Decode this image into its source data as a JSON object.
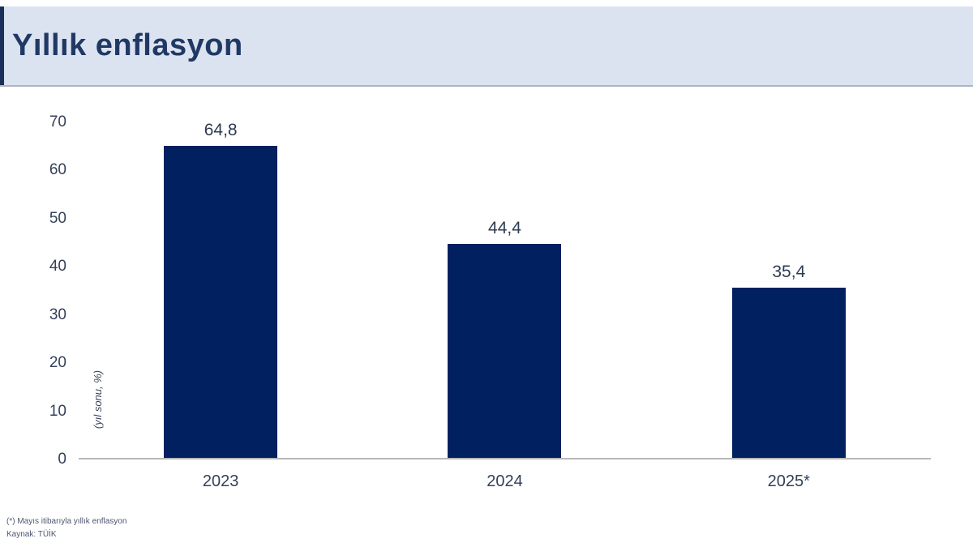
{
  "header": {
    "title": "Yıllık enflasyon"
  },
  "chart_data": {
    "type": "bar",
    "title": "Yıllık enflasyon",
    "categories": [
      "2023",
      "2024",
      "2025*"
    ],
    "values": [
      64.8,
      44.4,
      35.4
    ],
    "value_labels": [
      "64,8",
      "44,4",
      "35,4"
    ],
    "xlabel": "",
    "ylabel": "(yıl sonu, %)",
    "ylim": [
      0,
      70
    ],
    "yticks": [
      0,
      10,
      20,
      30,
      40,
      50,
      60,
      70
    ],
    "grid": false,
    "legend": "none",
    "bar_color": "#002060"
  },
  "footnote": {
    "line1": "(*) Mayıs itibarıyla yıllık enflasyon",
    "line2": "Kaynak: TÜİK"
  },
  "colors": {
    "header_bg": "#dbe3f0",
    "header_stripe": "#1b2f5b",
    "title_text": "#203864",
    "bar": "#002060",
    "axis_line": "#b7b7b7",
    "label_text": "#33405a",
    "footnote_text": "#4b5670"
  }
}
